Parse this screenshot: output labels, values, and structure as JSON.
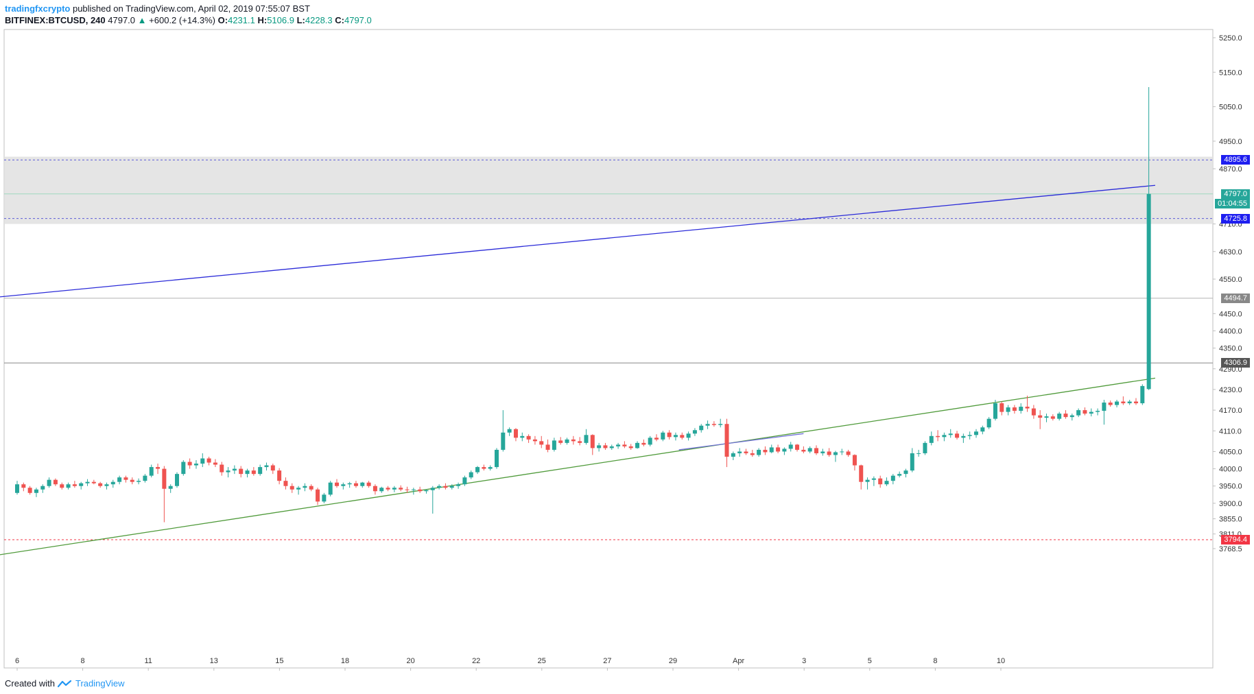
{
  "header": {
    "author": "tradingfxcrypto",
    "published_text": "published on TradingView.com, April 02, 2019 07:55:07 BST",
    "symbol": "BITFINEX:BTCUSD, 240",
    "last": "4797.0",
    "change_arrow": "▲",
    "change": "+600.2 (+14.3%)",
    "o_label": "O:",
    "o_value": "4231.1",
    "h_label": "H:",
    "h_value": "5106.9",
    "l_label": "L:",
    "l_value": "4228.3",
    "c_label": "C:",
    "c_value": "4797.0"
  },
  "footer": {
    "created_with": "Created with",
    "brand": "TradingView",
    "logo_icon": "tradingview-logo-icon"
  },
  "chart_data": {
    "type": "candlestick",
    "symbol": "BITFINEX:BTCUSD",
    "interval": "240",
    "x_tick_labels": [
      "6",
      "8",
      "11",
      "13",
      "15",
      "18",
      "20",
      "22",
      "25",
      "27",
      "29",
      "Apr",
      "3",
      "5",
      "8",
      "10"
    ],
    "y_tick_labels": [
      "5250.0",
      "5150.0",
      "5050.0",
      "4950.0",
      "4870.0",
      "4710.0",
      "4630.0",
      "4550.0",
      "4450.0",
      "4400.0",
      "4350.0",
      "4290.0",
      "4230.0",
      "4170.0",
      "4110.0",
      "4050.0",
      "4000.0",
      "3950.0",
      "3900.0",
      "3855.0",
      "3811.0",
      "3768.5"
    ],
    "price_labels": [
      {
        "text": "4895.6",
        "value": 4895.6,
        "color": "#1e1ef0"
      },
      {
        "text": "4797.0",
        "value": 4797.0,
        "color": "#26a69a"
      },
      {
        "text": "01:04:55",
        "value": 4769.0,
        "color": "#26a69a"
      },
      {
        "text": "4725.8",
        "value": 4725.8,
        "color": "#1e1ef0"
      },
      {
        "text": "4494.7",
        "value": 4494.7,
        "color": "#888888"
      },
      {
        "text": "4306.9",
        "value": 4306.9,
        "color": "#555555"
      },
      {
        "text": "3794.4",
        "value": 3794.4,
        "color": "#f23645"
      }
    ],
    "zone": {
      "top": 4905,
      "bottom": 4710,
      "color": "#e0e0e0"
    },
    "hlines": [
      {
        "value": 4895.6,
        "color": "#5b5bd6",
        "dash": true
      },
      {
        "value": 4725.8,
        "color": "#5b5bd6",
        "dash": true
      },
      {
        "value": 4797.0,
        "color": "#9ed8bf",
        "dash": false
      },
      {
        "value": 4494.7,
        "color": "#b0b0b0",
        "dash": false
      },
      {
        "value": 4306.9,
        "color": "#888888",
        "dash": false
      },
      {
        "value": 3794.4,
        "color": "#f23645",
        "dash": true
      }
    ],
    "trendlines": [
      {
        "name": "resistance",
        "color": "#2a2ad8",
        "x1": -0.6,
        "v1": 4498,
        "x2": 35.6,
        "v2": 4822
      },
      {
        "name": "support",
        "color": "#4f9a3a",
        "x1": -0.6,
        "v1": 3750,
        "x2": 35.6,
        "v2": 4263
      },
      {
        "name": "minor",
        "color": "#6f6fd8",
        "x1": 20.7,
        "v1": 4055,
        "x2": 24.6,
        "v2": 4102
      }
    ],
    "candles": [
      [
        0,
        3930,
        3965,
        3925,
        3955
      ],
      [
        0.2,
        3955,
        3960,
        3935,
        3945
      ],
      [
        0.4,
        3945,
        3950,
        3925,
        3930
      ],
      [
        0.6,
        3930,
        3945,
        3918,
        3940
      ],
      [
        0.8,
        3940,
        3955,
        3930,
        3950
      ],
      [
        1.0,
        3950,
        3975,
        3945,
        3968
      ],
      [
        1.2,
        3968,
        3972,
        3950,
        3955
      ],
      [
        1.4,
        3955,
        3960,
        3940,
        3945
      ],
      [
        1.6,
        3945,
        3960,
        3940,
        3955
      ],
      [
        1.8,
        3955,
        3965,
        3945,
        3950
      ],
      [
        2.0,
        3950,
        3962,
        3940,
        3958
      ],
      [
        2.2,
        3958,
        3970,
        3950,
        3962
      ],
      [
        2.4,
        3962,
        3968,
        3955,
        3958
      ],
      [
        2.6,
        3958,
        3962,
        3945,
        3950
      ],
      [
        2.8,
        3950,
        3960,
        3940,
        3955
      ],
      [
        3.0,
        3955,
        3968,
        3945,
        3962
      ],
      [
        3.2,
        3962,
        3980,
        3955,
        3975
      ],
      [
        3.4,
        3975,
        3980,
        3960,
        3968
      ],
      [
        3.6,
        3968,
        3975,
        3955,
        3962
      ],
      [
        3.8,
        3962,
        3972,
        3955,
        3965
      ],
      [
        4.0,
        3965,
        3985,
        3960,
        3980
      ],
      [
        4.2,
        3980,
        4012,
        3975,
        4005
      ],
      [
        4.4,
        4005,
        4015,
        3985,
        4000
      ],
      [
        4.6,
        4000,
        4008,
        3845,
        3942
      ],
      [
        4.8,
        3942,
        3955,
        3930,
        3950
      ],
      [
        5.0,
        3950,
        3990,
        3945,
        3985
      ],
      [
        5.2,
        3985,
        4025,
        3980,
        4020
      ],
      [
        5.4,
        4020,
        4030,
        4000,
        4010
      ],
      [
        5.6,
        4010,
        4025,
        4000,
        4015
      ],
      [
        5.8,
        4015,
        4045,
        4005,
        4030
      ],
      [
        6.0,
        4030,
        4035,
        4010,
        4018
      ],
      [
        6.2,
        4018,
        4028,
        4005,
        4012
      ],
      [
        6.4,
        4012,
        4020,
        3980,
        3990
      ],
      [
        6.6,
        3990,
        4005,
        3975,
        3995
      ],
      [
        6.8,
        3995,
        4010,
        3985,
        4000
      ],
      [
        7.0,
        4000,
        4008,
        3975,
        3985
      ],
      [
        7.2,
        3985,
        4000,
        3975,
        3995
      ],
      [
        7.4,
        3995,
        4005,
        3980,
        3985
      ],
      [
        7.6,
        3985,
        4012,
        3980,
        4005
      ],
      [
        7.8,
        4005,
        4018,
        3995,
        4010
      ],
      [
        8.0,
        4010,
        4015,
        3985,
        3995
      ],
      [
        8.2,
        3995,
        4002,
        3955,
        3965
      ],
      [
        8.4,
        3965,
        3975,
        3940,
        3950
      ],
      [
        8.6,
        3950,
        3958,
        3930,
        3940
      ],
      [
        8.8,
        3940,
        3950,
        3925,
        3945
      ],
      [
        9.0,
        3945,
        3958,
        3935,
        3950
      ],
      [
        9.2,
        3950,
        3955,
        3935,
        3940
      ],
      [
        9.4,
        3940,
        3945,
        3895,
        3905
      ],
      [
        9.6,
        3905,
        3930,
        3900,
        3925
      ],
      [
        9.8,
        3925,
        3965,
        3920,
        3960
      ],
      [
        10.0,
        3960,
        3970,
        3945,
        3950
      ],
      [
        10.2,
        3950,
        3960,
        3940,
        3955
      ],
      [
        10.4,
        3955,
        3962,
        3945,
        3958
      ],
      [
        10.6,
        3958,
        3965,
        3945,
        3950
      ],
      [
        10.8,
        3950,
        3962,
        3945,
        3960
      ],
      [
        11.0,
        3960,
        3965,
        3945,
        3950
      ],
      [
        11.2,
        3950,
        3955,
        3925,
        3935
      ],
      [
        11.4,
        3935,
        3948,
        3930,
        3945
      ],
      [
        11.6,
        3945,
        3950,
        3935,
        3940
      ],
      [
        11.8,
        3940,
        3950,
        3932,
        3945
      ],
      [
        12.0,
        3945,
        3952,
        3935,
        3940
      ],
      [
        12.2,
        3940,
        3948,
        3930,
        3938
      ],
      [
        12.4,
        3938,
        3945,
        3925,
        3940
      ],
      [
        12.6,
        3940,
        3948,
        3930,
        3935
      ],
      [
        12.8,
        3935,
        3940,
        3928,
        3938
      ],
      [
        13.0,
        3938,
        3950,
        3870,
        3945
      ],
      [
        13.2,
        3945,
        3955,
        3940,
        3950
      ],
      [
        13.4,
        3950,
        3958,
        3940,
        3945
      ],
      [
        13.6,
        3945,
        3955,
        3940,
        3950
      ],
      [
        13.8,
        3950,
        3960,
        3942,
        3955
      ],
      [
        14.0,
        3955,
        3980,
        3950,
        3975
      ],
      [
        14.2,
        3975,
        3995,
        3970,
        3990
      ],
      [
        14.4,
        3990,
        4008,
        3985,
        4005
      ],
      [
        14.6,
        4005,
        4012,
        3995,
        4000
      ],
      [
        14.8,
        4000,
        4010,
        3995,
        4005
      ],
      [
        15.0,
        4005,
        4060,
        4000,
        4055
      ],
      [
        15.2,
        4055,
        4170,
        4050,
        4105
      ],
      [
        15.4,
        4105,
        4120,
        4095,
        4115
      ],
      [
        15.6,
        4115,
        4118,
        4080,
        4090
      ],
      [
        15.8,
        4090,
        4105,
        4080,
        4095
      ],
      [
        16.0,
        4095,
        4100,
        4075,
        4085
      ],
      [
        16.2,
        4085,
        4095,
        4070,
        4080
      ],
      [
        16.4,
        4080,
        4095,
        4060,
        4070
      ],
      [
        16.6,
        4070,
        4085,
        4048,
        4055
      ],
      [
        16.8,
        4055,
        4090,
        4050,
        4082
      ],
      [
        17.0,
        4082,
        4092,
        4070,
        4075
      ],
      [
        17.2,
        4075,
        4090,
        4070,
        4085
      ],
      [
        17.4,
        4085,
        4095,
        4070,
        4080
      ],
      [
        17.6,
        4080,
        4092,
        4068,
        4075
      ],
      [
        17.8,
        4075,
        4115,
        4070,
        4098
      ],
      [
        18.0,
        4098,
        4100,
        4040,
        4060
      ],
      [
        18.2,
        4060,
        4075,
        4050,
        4068
      ],
      [
        18.4,
        4068,
        4075,
        4055,
        4060
      ],
      [
        18.6,
        4060,
        4070,
        4055,
        4065
      ],
      [
        18.8,
        4065,
        4075,
        4058,
        4070
      ],
      [
        19.0,
        4070,
        4080,
        4060,
        4065
      ],
      [
        19.2,
        4065,
        4072,
        4055,
        4060
      ],
      [
        19.4,
        4060,
        4080,
        4058,
        4075
      ],
      [
        19.6,
        4075,
        4085,
        4065,
        4070
      ],
      [
        19.8,
        4070,
        4095,
        4065,
        4090
      ],
      [
        20.0,
        4090,
        4100,
        4080,
        4085
      ],
      [
        20.2,
        4085,
        4110,
        4080,
        4105
      ],
      [
        20.4,
        4105,
        4112,
        4085,
        4092
      ],
      [
        20.6,
        4092,
        4105,
        4082,
        4098
      ],
      [
        20.8,
        4098,
        4105,
        4085,
        4090
      ],
      [
        21.0,
        4090,
        4108,
        4082,
        4102
      ],
      [
        21.2,
        4102,
        4118,
        4095,
        4112
      ],
      [
        21.4,
        4112,
        4130,
        4105,
        4125
      ],
      [
        21.6,
        4125,
        4140,
        4115,
        4130
      ],
      [
        21.8,
        4130,
        4138,
        4122,
        4127
      ],
      [
        22.0,
        4127,
        4145,
        4120,
        4130
      ],
      [
        22.2,
        4130,
        4145,
        4005,
        4035
      ],
      [
        22.4,
        4035,
        4050,
        4025,
        4045
      ],
      [
        22.6,
        4045,
        4060,
        4035,
        4050
      ],
      [
        22.8,
        4050,
        4058,
        4040,
        4045
      ],
      [
        23.0,
        4045,
        4055,
        4035,
        4040
      ],
      [
        23.2,
        4040,
        4060,
        4035,
        4055
      ],
      [
        23.4,
        4055,
        4065,
        4040,
        4048
      ],
      [
        23.6,
        4048,
        4070,
        4045,
        4062
      ],
      [
        23.8,
        4062,
        4070,
        4045,
        4050
      ],
      [
        24.0,
        4050,
        4062,
        4040,
        4058
      ],
      [
        24.2,
        4058,
        4078,
        4050,
        4070
      ],
      [
        24.4,
        4070,
        4072,
        4050,
        4055
      ],
      [
        24.6,
        4055,
        4065,
        4045,
        4050
      ],
      [
        24.8,
        4050,
        4065,
        4045,
        4060
      ],
      [
        25.0,
        4060,
        4068,
        4040,
        4045
      ],
      [
        25.2,
        4045,
        4058,
        4038,
        4050
      ],
      [
        25.4,
        4050,
        4060,
        4035,
        4040
      ],
      [
        25.6,
        4040,
        4052,
        4020,
        4048
      ],
      [
        25.8,
        4048,
        4058,
        4040,
        4050
      ],
      [
        26.0,
        4050,
        4055,
        4035,
        4040
      ],
      [
        26.2,
        4040,
        4042,
        3995,
        4010
      ],
      [
        26.4,
        4010,
        4012,
        3940,
        3962
      ],
      [
        26.6,
        3962,
        3975,
        3940,
        3968
      ],
      [
        26.8,
        3968,
        3978,
        3950,
        3972
      ],
      [
        27.0,
        3972,
        3980,
        3945,
        3955
      ],
      [
        27.2,
        3955,
        3975,
        3950,
        3965
      ],
      [
        27.4,
        3965,
        3985,
        3955,
        3980
      ],
      [
        27.6,
        3980,
        3992,
        3975,
        3985
      ],
      [
        27.8,
        3985,
        4000,
        3975,
        3995
      ],
      [
        28.0,
        3995,
        4060,
        3990,
        4045
      ],
      [
        28.2,
        4045,
        4055,
        4035,
        4045
      ],
      [
        28.4,
        4045,
        4080,
        4040,
        4075
      ],
      [
        28.6,
        4075,
        4108,
        4068,
        4095
      ],
      [
        28.8,
        4095,
        4112,
        4080,
        4092
      ],
      [
        29.0,
        4092,
        4105,
        4080,
        4098
      ],
      [
        29.2,
        4098,
        4115,
        4090,
        4102
      ],
      [
        29.4,
        4102,
        4110,
        4085,
        4090
      ],
      [
        29.6,
        4090,
        4102,
        4075,
        4095
      ],
      [
        29.8,
        4095,
        4108,
        4085,
        4098
      ],
      [
        30.0,
        4098,
        4115,
        4090,
        4108
      ],
      [
        30.2,
        4108,
        4125,
        4100,
        4120
      ],
      [
        30.4,
        4120,
        4150,
        4115,
        4145
      ],
      [
        30.6,
        4145,
        4200,
        4140,
        4190
      ],
      [
        30.8,
        4190,
        4195,
        4155,
        4165
      ],
      [
        31.0,
        4165,
        4185,
        4155,
        4178
      ],
      [
        31.2,
        4178,
        4185,
        4160,
        4168
      ],
      [
        31.4,
        4168,
        4190,
        4160,
        4180
      ],
      [
        31.6,
        4180,
        4212,
        4165,
        4175
      ],
      [
        31.8,
        4175,
        4185,
        4145,
        4155
      ],
      [
        32.0,
        4155,
        4170,
        4115,
        4148
      ],
      [
        32.2,
        4148,
        4160,
        4135,
        4152
      ],
      [
        32.4,
        4152,
        4158,
        4140,
        4145
      ],
      [
        32.6,
        4145,
        4165,
        4140,
        4160
      ],
      [
        32.8,
        4160,
        4170,
        4145,
        4150
      ],
      [
        33.0,
        4150,
        4160,
        4140,
        4155
      ],
      [
        33.2,
        4155,
        4175,
        4150,
        4170
      ],
      [
        33.4,
        4170,
        4178,
        4155,
        4160
      ],
      [
        33.6,
        4160,
        4175,
        4152,
        4165
      ],
      [
        33.8,
        4165,
        4175,
        4155,
        4168
      ],
      [
        34.0,
        4168,
        4200,
        4128,
        4192
      ],
      [
        34.2,
        4192,
        4198,
        4180,
        4185
      ],
      [
        34.4,
        4185,
        4200,
        4178,
        4195
      ],
      [
        34.6,
        4195,
        4210,
        4185,
        4190
      ],
      [
        34.8,
        4190,
        4200,
        4185,
        4195
      ],
      [
        35.0,
        4195,
        4205,
        4185,
        4190
      ],
      [
        35.2,
        4190,
        4245,
        4185,
        4240
      ],
      [
        35.4,
        4231.1,
        5106.9,
        4228.3,
        4797.0
      ]
    ]
  }
}
